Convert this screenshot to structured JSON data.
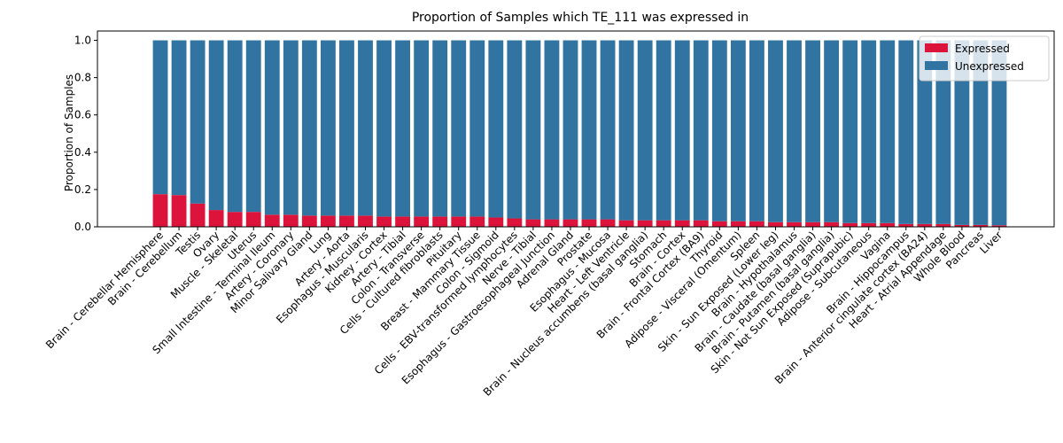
{
  "chart_data": {
    "type": "bar",
    "stacked": true,
    "title": "Proportion of Samples which TE_111 was expressed in",
    "xlabel": "",
    "ylabel": "Proportion of Samples",
    "ylim": [
      0,
      1.05
    ],
    "yticks": [
      "0.0",
      "0.2",
      "0.4",
      "0.6",
      "0.8",
      "1.0"
    ],
    "legend_position": "top-right",
    "categories": [
      "Brain - Cerebellar Hemisphere",
      "Brain - Cerebellum",
      "Testis",
      "Ovary",
      "Muscle - Skeletal",
      "Uterus",
      "Small Intestine - Terminal Ileum",
      "Artery - Coronary",
      "Minor Salivary Gland",
      "Lung",
      "Artery - Aorta",
      "Esophagus - Muscularis",
      "Kidney - Cortex",
      "Artery - Tibial",
      "Colon - Transverse",
      "Cells - Cultured fibroblasts",
      "Pituitary",
      "Breast - Mammary Tissue",
      "Colon - Sigmoid",
      "Cells - EBV-transformed lymphocytes",
      "Nerve - Tibial",
      "Esophagus - Gastroesophageal Junction",
      "Adrenal Gland",
      "Prostate",
      "Esophagus - Mucosa",
      "Heart - Left Ventricle",
      "Brain - Nucleus accumbens (basal ganglia)",
      "Stomach",
      "Brain - Cortex",
      "Brain - Frontal Cortex (BA9)",
      "Thyroid",
      "Adipose - Visceral (Omentum)",
      "Spleen",
      "Skin - Sun Exposed (Lower leg)",
      "Brain - Hypothalamus",
      "Brain - Caudate (basal ganglia)",
      "Brain - Putamen (basal ganglia)",
      "Skin - Not Sun Exposed (Suprapubic)",
      "Adipose - Subcutaneous",
      "Vagina",
      "Brain - Hippocampus",
      "Brain - Anterior cingulate cortex (BA24)",
      "Heart - Atrial Appendage",
      "Whole Blood",
      "Pancreas",
      "Liver"
    ],
    "series": [
      {
        "name": "Expressed",
        "color": "#dc143c",
        "values": [
          0.175,
          0.17,
          0.125,
          0.09,
          0.08,
          0.08,
          0.065,
          0.065,
          0.06,
          0.06,
          0.06,
          0.06,
          0.055,
          0.055,
          0.055,
          0.055,
          0.055,
          0.055,
          0.05,
          0.045,
          0.04,
          0.04,
          0.04,
          0.04,
          0.04,
          0.035,
          0.035,
          0.035,
          0.035,
          0.035,
          0.03,
          0.03,
          0.03,
          0.025,
          0.025,
          0.025,
          0.025,
          0.02,
          0.02,
          0.02,
          0.015,
          0.015,
          0.015,
          0.01,
          0.01,
          0.008
        ]
      },
      {
        "name": "Unexpressed",
        "color": "#3274a1",
        "values": [
          0.825,
          0.83,
          0.875,
          0.91,
          0.92,
          0.92,
          0.935,
          0.935,
          0.94,
          0.94,
          0.94,
          0.94,
          0.945,
          0.945,
          0.945,
          0.945,
          0.945,
          0.945,
          0.95,
          0.955,
          0.96,
          0.96,
          0.96,
          0.96,
          0.96,
          0.965,
          0.965,
          0.965,
          0.965,
          0.965,
          0.97,
          0.97,
          0.97,
          0.975,
          0.975,
          0.975,
          0.975,
          0.98,
          0.98,
          0.98,
          0.985,
          0.985,
          0.985,
          0.99,
          0.99,
          0.992
        ]
      }
    ]
  }
}
